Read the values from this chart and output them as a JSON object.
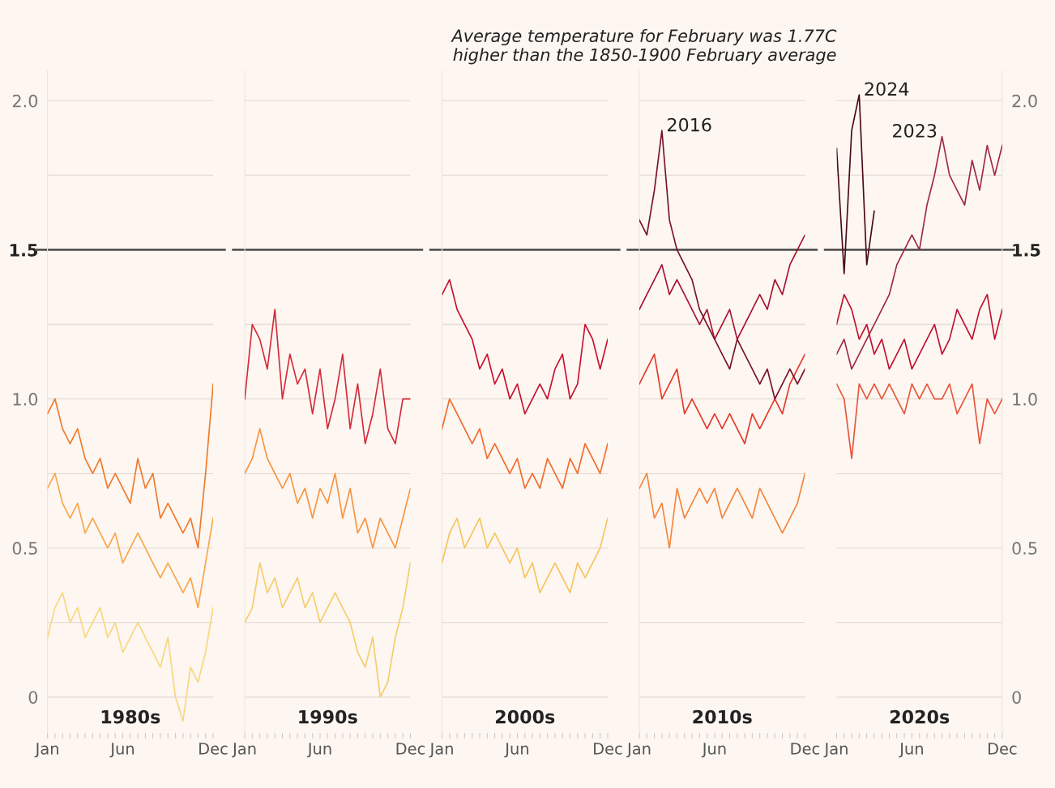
{
  "chart_data": [
    {
      "type": "line",
      "xlabel": "1980s",
      "grid": "y",
      "ylim": [
        -0.12,
        2.1
      ],
      "categories": [
        "Jan",
        null,
        null,
        null,
        null,
        null,
        null,
        null,
        null,
        null,
        "Jun",
        null,
        null,
        null,
        null,
        null,
        null,
        null,
        null,
        null,
        null,
        null,
        "Dec"
      ],
      "yticks": [
        0,
        {
          "value": 0.25,
          "label": null
        },
        0.5,
        {
          "value": 0.75,
          "label": null
        },
        {
          "value": 1.0,
          "label": "1.0"
        },
        {
          "value": 1.25,
          "label": null
        },
        1.5,
        {
          "value": 1.75,
          "label": null
        },
        {
          "value": 2.0,
          "label": "2.0"
        }
      ],
      "ref_lines": [
        {
          "axis": "y",
          "value": 1.5,
          "color": "#555555"
        }
      ],
      "series": [
        {
          "color": "#f07a2a",
          "values": [
            0.95,
            1.0,
            0.9,
            0.85,
            0.9,
            0.8,
            0.75,
            0.8,
            0.7,
            0.75,
            0.7,
            0.65,
            0.8,
            0.7,
            0.75,
            0.6,
            0.65,
            0.6,
            0.55,
            0.6,
            0.5,
            0.75,
            1.05
          ]
        },
        {
          "color": "#f9a64a",
          "values": [
            0.7,
            0.75,
            0.65,
            0.6,
            0.65,
            0.55,
            0.6,
            0.55,
            0.5,
            0.55,
            0.45,
            0.5,
            0.55,
            0.5,
            0.45,
            0.4,
            0.45,
            0.4,
            0.35,
            0.4,
            0.3,
            0.45,
            0.6
          ]
        },
        {
          "color": "#f8d77c",
          "values": [
            0.2,
            0.3,
            0.35,
            0.25,
            0.3,
            0.2,
            0.25,
            0.3,
            0.2,
            0.25,
            0.15,
            0.2,
            0.25,
            0.2,
            0.15,
            0.1,
            0.2,
            0.0,
            -0.08,
            0.1,
            0.05,
            0.15,
            0.3
          ]
        }
      ]
    },
    {
      "type": "line",
      "xlabel": "1990s",
      "grid": "y",
      "tick_labels": "x",
      "ylim": [
        -0.12,
        2.1
      ],
      "categories": [
        "Jan",
        null,
        null,
        null,
        null,
        null,
        null,
        null,
        null,
        null,
        "Jun",
        null,
        null,
        null,
        null,
        null,
        null,
        null,
        null,
        null,
        null,
        null,
        "Dec"
      ],
      "yticks": [
        0,
        0.25,
        0.5,
        0.75,
        1.0,
        1.25,
        1.5,
        1.75,
        2.0
      ],
      "ref_lines": [
        {
          "axis": "y",
          "value": 1.5,
          "color": "#555555"
        }
      ],
      "series": [
        {
          "color": "#d42a3a",
          "values": [
            1.0,
            1.25,
            1.2,
            1.1,
            1.3,
            1.0,
            1.15,
            1.05,
            1.1,
            0.95,
            1.1,
            0.9,
            1.0,
            1.15,
            0.9,
            1.05,
            0.85,
            0.95,
            1.1,
            0.9,
            0.85,
            1.0,
            1.0
          ]
        },
        {
          "color": "#f7953f",
          "values": [
            0.75,
            0.8,
            0.9,
            0.8,
            0.75,
            0.7,
            0.75,
            0.65,
            0.7,
            0.6,
            0.7,
            0.65,
            0.75,
            0.6,
            0.7,
            0.55,
            0.6,
            0.5,
            0.6,
            0.55,
            0.5,
            0.6,
            0.7
          ]
        },
        {
          "color": "#f7cc6a",
          "values": [
            0.25,
            0.3,
            0.45,
            0.35,
            0.4,
            0.3,
            0.35,
            0.4,
            0.3,
            0.35,
            0.25,
            0.3,
            0.35,
            0.3,
            0.25,
            0.15,
            0.1,
            0.2,
            0.0,
            0.05,
            0.2,
            0.3,
            0.45
          ]
        }
      ]
    },
    {
      "type": "line",
      "xlabel": "2000s",
      "grid": "y",
      "tick_labels": "x",
      "ylim": [
        -0.12,
        2.1
      ],
      "categories": [
        "Jan",
        null,
        null,
        null,
        null,
        null,
        null,
        null,
        null,
        null,
        "Jun",
        null,
        null,
        null,
        null,
        null,
        null,
        null,
        null,
        null,
        null,
        null,
        "Dec"
      ],
      "yticks": [
        0,
        0.25,
        0.5,
        0.75,
        1.0,
        1.25,
        1.5,
        1.75,
        2.0
      ],
      "ref_lines": [
        {
          "axis": "y",
          "value": 1.5,
          "color": "#555555"
        }
      ],
      "series": [
        {
          "color": "#c8102e",
          "values": [
            1.35,
            1.4,
            1.3,
            1.25,
            1.2,
            1.1,
            1.15,
            1.05,
            1.1,
            1.0,
            1.05,
            0.95,
            1.0,
            1.05,
            1.0,
            1.1,
            1.15,
            1.0,
            1.05,
            1.25,
            1.2,
            1.1,
            1.2
          ]
        },
        {
          "color": "#f26a2a",
          "values": [
            0.9,
            1.0,
            0.95,
            0.9,
            0.85,
            0.9,
            0.8,
            0.85,
            0.8,
            0.75,
            0.8,
            0.7,
            0.75,
            0.7,
            0.8,
            0.75,
            0.7,
            0.8,
            0.75,
            0.85,
            0.8,
            0.75,
            0.85
          ]
        },
        {
          "color": "#f7c45a",
          "values": [
            0.45,
            0.55,
            0.6,
            0.5,
            0.55,
            0.6,
            0.5,
            0.55,
            0.5,
            0.45,
            0.5,
            0.4,
            0.45,
            0.35,
            0.4,
            0.45,
            0.4,
            0.35,
            0.45,
            0.4,
            0.45,
            0.5,
            0.6
          ]
        }
      ]
    },
    {
      "type": "line",
      "xlabel": "2010s",
      "grid": "y",
      "tick_labels": "x",
      "ylim": [
        -0.12,
        2.1
      ],
      "categories": [
        "Jan",
        null,
        null,
        null,
        null,
        null,
        null,
        null,
        null,
        null,
        "Jun",
        null,
        null,
        null,
        null,
        null,
        null,
        null,
        null,
        null,
        null,
        null,
        "Dec"
      ],
      "yticks": [
        0,
        0.25,
        0.5,
        0.75,
        1.0,
        1.25,
        1.5,
        1.75,
        2.0
      ],
      "ref_lines": [
        {
          "axis": "y",
          "value": 1.5,
          "color": "#555555"
        }
      ],
      "series": [
        {
          "color": "#a8122e",
          "values": [
            1.3,
            1.35,
            1.4,
            1.45,
            1.35,
            1.4,
            1.35,
            1.3,
            1.25,
            1.3,
            1.2,
            1.25,
            1.3,
            1.2,
            1.25,
            1.3,
            1.35,
            1.3,
            1.4,
            1.35,
            1.45,
            1.5,
            1.55
          ]
        },
        {
          "color": "#e5382a",
          "values": [
            1.05,
            1.1,
            1.15,
            1.0,
            1.05,
            1.1,
            0.95,
            1.0,
            0.95,
            0.9,
            0.95,
            0.9,
            0.95,
            0.9,
            0.85,
            0.95,
            0.9,
            0.95,
            1.0,
            0.95,
            1.05,
            1.1,
            1.15
          ]
        },
        {
          "color": "#f5853a",
          "values": [
            0.7,
            0.75,
            0.6,
            0.65,
            0.5,
            0.7,
            0.6,
            0.65,
            0.7,
            0.65,
            0.7,
            0.6,
            0.65,
            0.7,
            0.65,
            0.6,
            0.7,
            0.65,
            0.6,
            0.55,
            0.6,
            0.65,
            0.75
          ]
        },
        {
          "name": "2016",
          "color": "#7a1228",
          "values": [
            1.6,
            1.55,
            1.7,
            1.9,
            1.6,
            1.5,
            1.45,
            1.4,
            1.3,
            1.25,
            1.2,
            1.15,
            1.1,
            1.2,
            1.15,
            1.1,
            1.05,
            1.1,
            1.0,
            1.05,
            1.1,
            1.05,
            1.1
          ]
        }
      ]
    },
    {
      "type": "line",
      "xlabel": "2020s",
      "grid": "y",
      "ylim": [
        -0.12,
        2.1
      ],
      "categories": [
        "Jan",
        null,
        null,
        null,
        null,
        null,
        null,
        null,
        null,
        null,
        "Jun",
        null,
        null,
        null,
        null,
        null,
        null,
        null,
        null,
        null,
        null,
        null,
        "Dec"
      ],
      "yticks": [
        0,
        {
          "value": 0.25,
          "label": null
        },
        0.5,
        {
          "value": 0.75,
          "label": null
        },
        {
          "value": 1.0,
          "label": "1.0"
        },
        {
          "value": 1.25,
          "label": null
        },
        1.5,
        {
          "value": 1.75,
          "label": null
        },
        {
          "value": 2.0,
          "label": "2.0"
        }
      ],
      "ref_lines": [
        {
          "axis": "y",
          "value": 1.5,
          "color": "#555555"
        }
      ],
      "annotations": [
        "Average temperature for February was 1.77C\nhigher than the 1850-1900 February average"
      ],
      "series": [
        {
          "color": "#e8553a",
          "values": [
            1.05,
            1.0,
            0.8,
            1.05,
            1.0,
            1.05,
            1.0,
            1.05,
            1.0,
            0.95,
            1.05,
            1.0,
            1.05,
            1.0,
            1.0,
            1.05,
            0.95,
            1.0,
            1.05,
            0.85,
            1.0,
            0.95,
            1.0
          ]
        },
        {
          "color": "#c0102e",
          "values": [
            1.25,
            1.35,
            1.3,
            1.2,
            1.25,
            1.15,
            1.2,
            1.1,
            1.15,
            1.2,
            1.1,
            1.15,
            1.2,
            1.25,
            1.15,
            1.2,
            1.3,
            1.25,
            1.2,
            1.3,
            1.35,
            1.2,
            1.3
          ]
        },
        {
          "name": "2023",
          "color": "#9e2a44",
          "values": [
            1.15,
            1.2,
            1.1,
            1.15,
            1.2,
            1.25,
            1.3,
            1.35,
            1.45,
            1.5,
            1.55,
            1.5,
            1.65,
            1.75,
            1.88,
            1.75,
            1.7,
            1.65,
            1.8,
            1.7,
            1.85,
            1.75,
            1.85
          ]
        },
        {
          "name": "2024",
          "color": "#4a0a18",
          "values": [
            1.84,
            1.42,
            1.9,
            2.02,
            1.45,
            1.63,
            null,
            null,
            null,
            null,
            null,
            null,
            null,
            null,
            null,
            null,
            null,
            null,
            null,
            null,
            null,
            null,
            null
          ]
        }
      ]
    }
  ]
}
